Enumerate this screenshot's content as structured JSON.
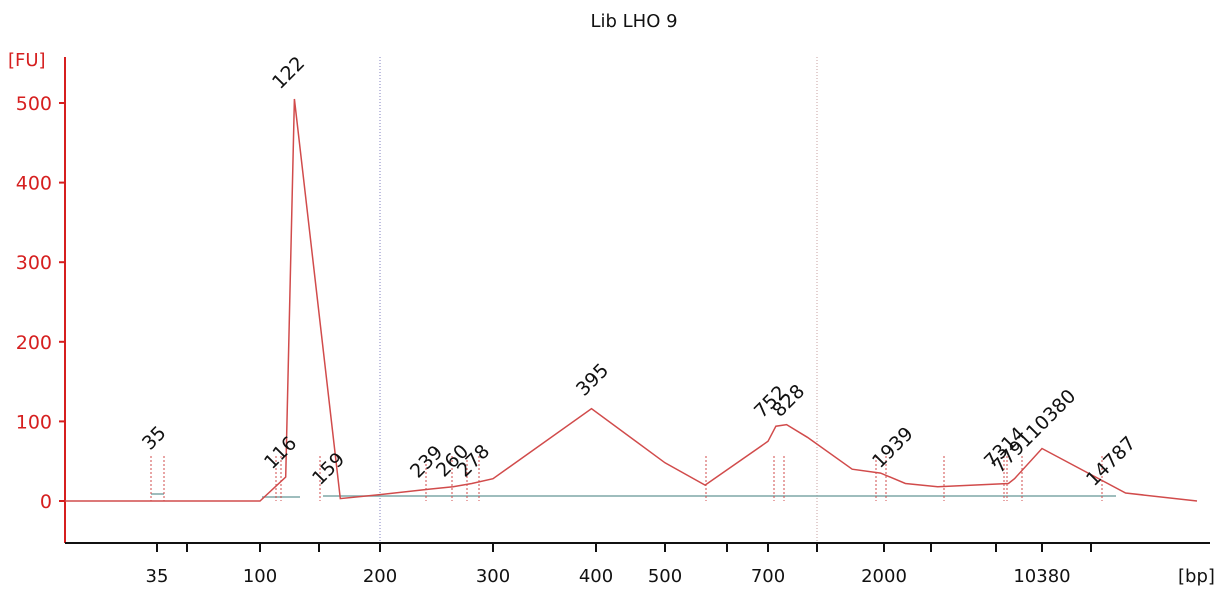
{
  "chart_data": {
    "type": "line",
    "title": "Lib LHO 9",
    "ylabel": "[FU]",
    "xlabel": "[bp]",
    "ylim": [
      -50,
      560
    ],
    "y_ticks": [
      0,
      100,
      200,
      300,
      400,
      500
    ],
    "x_tick_labels": [
      "35",
      "100",
      "200",
      "300",
      "400",
      "500",
      "700",
      "2000",
      "10380"
    ],
    "grid": false,
    "series": [
      {
        "values_x_bp": [
          35,
          100,
          116,
          122,
          159,
          200,
          239,
          260,
          278,
          300,
          395,
          500,
          570,
          700,
          752,
          828,
          1000,
          1500,
          1939,
          2500,
          3500,
          7314,
          7791,
          10380,
          14787,
          20000
        ],
        "values_y_fu": [
          0,
          0,
          30,
          505,
          3,
          8,
          15,
          18,
          22,
          28,
          116,
          48,
          20,
          75,
          94,
          96,
          80,
          40,
          35,
          22,
          18,
          22,
          28,
          66,
          10,
          0
        ]
      }
    ],
    "peak_labels": [
      {
        "text": "35",
        "color": "#1f8f1f"
      },
      {
        "text": "116",
        "color": "#111111"
      },
      {
        "text": "122",
        "color": "#111111"
      },
      {
        "text": "159",
        "color": "#111111"
      },
      {
        "text": "239",
        "color": "#111111"
      },
      {
        "text": "260",
        "color": "#111111"
      },
      {
        "text": "278",
        "color": "#111111"
      },
      {
        "text": "395",
        "color": "#111111"
      },
      {
        "text": "752",
        "color": "#111111"
      },
      {
        "text": "828",
        "color": "#111111"
      },
      {
        "text": "1939",
        "color": "#111111"
      },
      {
        "text": "7314",
        "color": "#111111"
      },
      {
        "text": "7791",
        "color": "#111111"
      },
      {
        "text": "10380",
        "color": "#9a4fe6"
      },
      {
        "text": "14787",
        "color": "#111111"
      }
    ],
    "colors": {
      "axis": "#d61f1f",
      "trace": "#d14b4b",
      "baseline": "#7fa7a7",
      "guide": "#7f7fbf"
    }
  }
}
